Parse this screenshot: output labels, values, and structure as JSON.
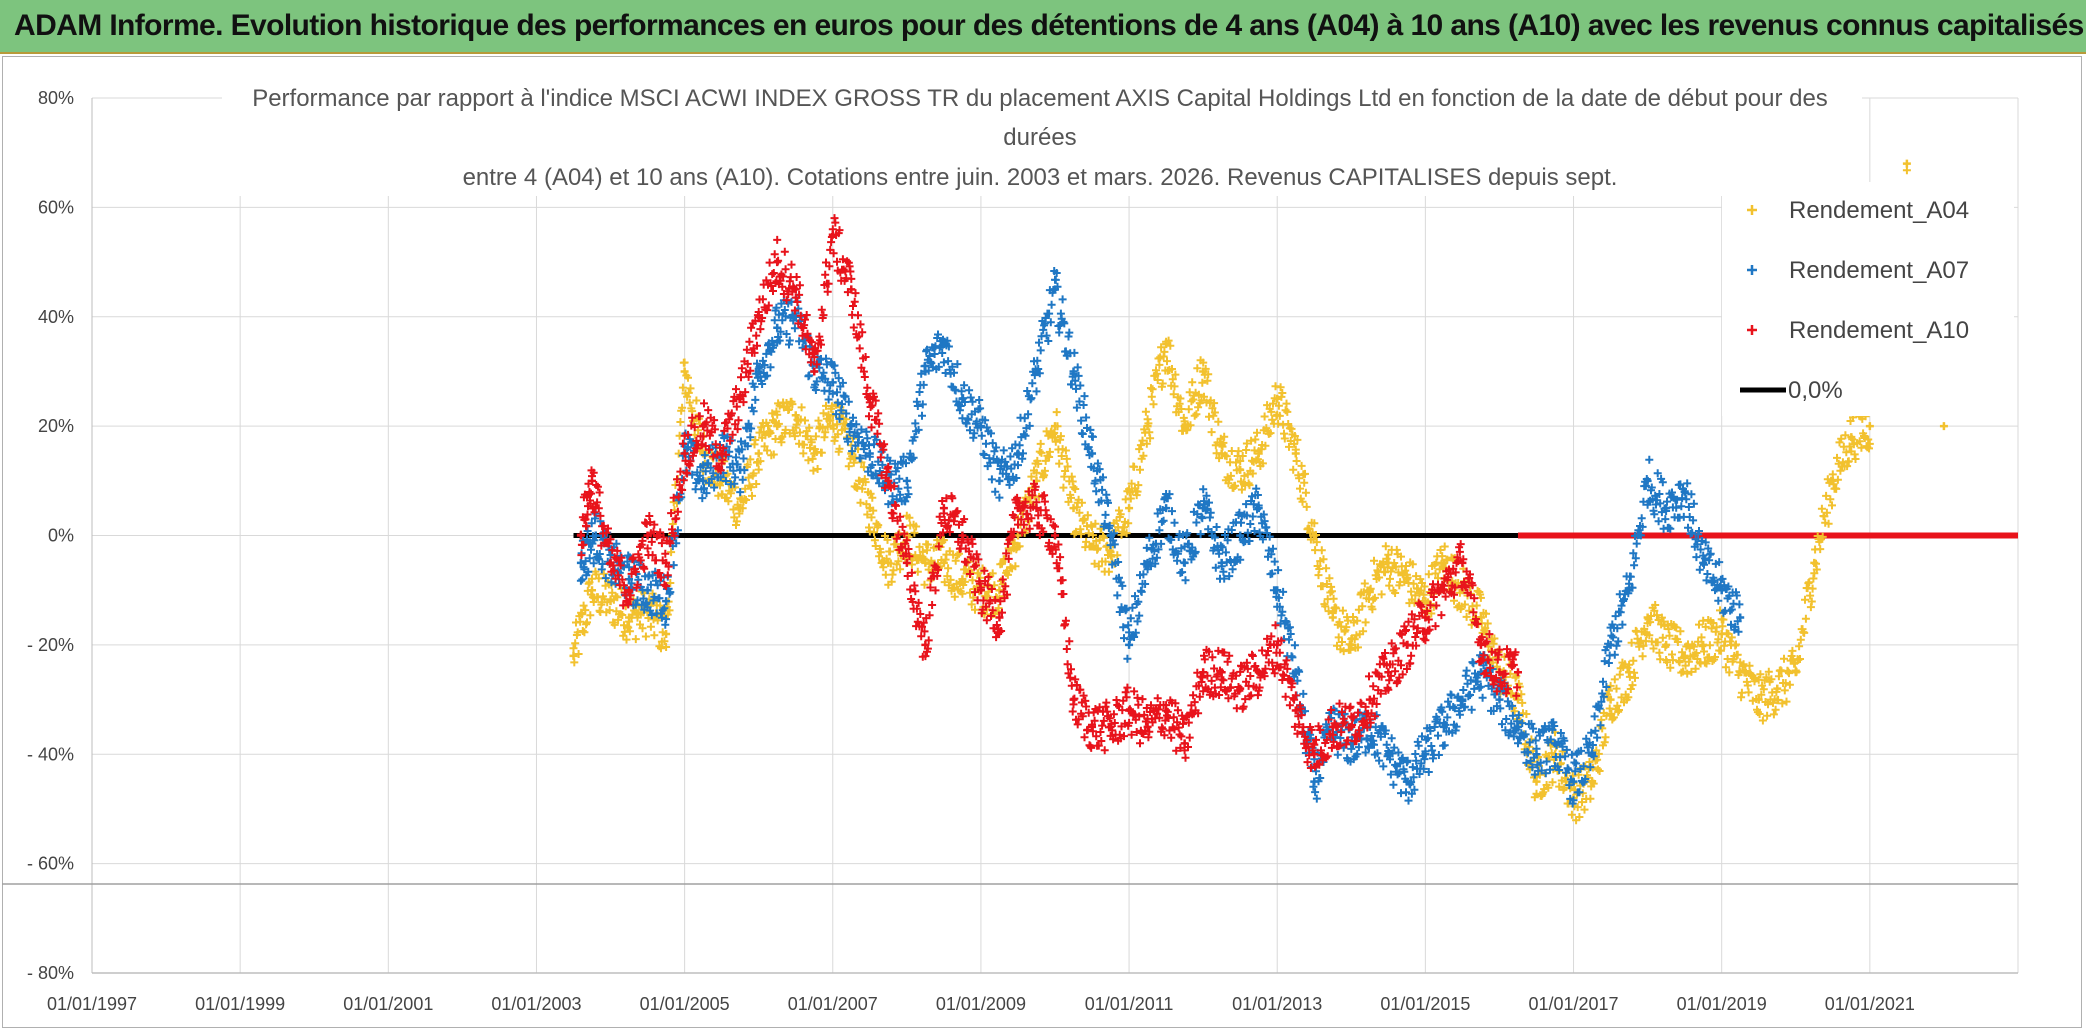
{
  "banner": {
    "title": "ADAM Informe. Evolution historique des performances en euros pour des détentions de 4 ans (A04) à 10 ans (A10) avec les revenus connus capitalisés"
  },
  "chart_data": {
    "type": "scatter",
    "title_lines": [
      "Performance  par rapport à l'indice MSCI ACWI INDEX GROSS TR  du placement AXIS Capital Holdings Ltd en fonction de la date de début pour des",
      "durées",
      "entre 4 (A04) et 10 ans (A10). Cotations entre juin. 2003 et mars. 2026. Revenus CAPITALISES depuis sept."
    ],
    "x_ticks": [
      "01/01/1997",
      "01/01/1999",
      "01/01/2001",
      "01/01/2003",
      "01/01/2005",
      "01/01/2007",
      "01/01/2009",
      "01/01/2011",
      "01/01/2013",
      "01/01/2015",
      "01/01/2017",
      "01/01/2019",
      "01/01/2021"
    ],
    "y_ticks": [
      "80%",
      "60%",
      "40%",
      "20%",
      "0%",
      "- 20%",
      "- 40%",
      "- 60%",
      "- 80%"
    ],
    "xlim": [
      1997.0,
      2023.0
    ],
    "ylim": [
      -80,
      80
    ],
    "legend_position": "top-right",
    "colors": {
      "A04": "#f2c12e",
      "A07": "#1f77c4",
      "A10": "#e8131b",
      "zero": "#000000",
      "grid": "#d9d9d9"
    },
    "series": [
      {
        "name": "Rendement_A04",
        "key": "A04",
        "points": [
          [
            2003.5,
            -22
          ],
          [
            2003.75,
            -10
          ],
          [
            2004.0,
            -12
          ],
          [
            2004.25,
            -15
          ],
          [
            2004.5,
            -14
          ],
          [
            2004.75,
            -18
          ],
          [
            2005.0,
            30
          ],
          [
            2005.25,
            15
          ],
          [
            2005.5,
            10
          ],
          [
            2005.75,
            5
          ],
          [
            2006.0,
            15
          ],
          [
            2006.25,
            20
          ],
          [
            2006.5,
            22
          ],
          [
            2006.75,
            15
          ],
          [
            2007.0,
            22
          ],
          [
            2007.25,
            15
          ],
          [
            2007.5,
            5
          ],
          [
            2007.75,
            -5
          ],
          [
            2008.0,
            0
          ],
          [
            2008.25,
            -5
          ],
          [
            2008.5,
            -5
          ],
          [
            2008.75,
            -8
          ],
          [
            2009.0,
            -10
          ],
          [
            2009.25,
            -10
          ],
          [
            2009.5,
            0
          ],
          [
            2009.75,
            10
          ],
          [
            2010.0,
            20
          ],
          [
            2010.25,
            5
          ],
          [
            2010.5,
            -2
          ],
          [
            2010.75,
            -3
          ],
          [
            2011.0,
            5
          ],
          [
            2011.25,
            20
          ],
          [
            2011.5,
            35
          ],
          [
            2011.75,
            20
          ],
          [
            2012.0,
            30
          ],
          [
            2012.25,
            15
          ],
          [
            2012.5,
            12
          ],
          [
            2012.75,
            15
          ],
          [
            2013.0,
            25
          ],
          [
            2013.25,
            15
          ],
          [
            2013.5,
            0
          ],
          [
            2013.75,
            -15
          ],
          [
            2014.0,
            -20
          ],
          [
            2014.25,
            -10
          ],
          [
            2014.5,
            -5
          ],
          [
            2014.75,
            -8
          ],
          [
            2015.0,
            -12
          ],
          [
            2015.25,
            -5
          ],
          [
            2015.5,
            -10
          ],
          [
            2015.75,
            -15
          ],
          [
            2016.0,
            -25
          ],
          [
            2016.25,
            -30
          ],
          [
            2016.5,
            -45
          ],
          [
            2016.75,
            -40
          ],
          [
            2017.0,
            -48
          ],
          [
            2017.25,
            -45
          ],
          [
            2017.5,
            -30
          ],
          [
            2017.75,
            -25
          ],
          [
            2018.0,
            -15
          ],
          [
            2018.25,
            -20
          ],
          [
            2018.5,
            -22
          ],
          [
            2018.75,
            -20
          ],
          [
            2019.0,
            -18
          ],
          [
            2019.25,
            -25
          ],
          [
            2019.5,
            -30
          ],
          [
            2019.75,
            -28
          ],
          [
            2020.0,
            -25
          ],
          [
            2020.25,
            -5
          ],
          [
            2020.5,
            10
          ],
          [
            2020.75,
            18
          ],
          [
            2021.0,
            20
          ],
          [
            2021.5,
            68
          ],
          [
            2022.0,
            20
          ]
        ]
      },
      {
        "name": "Rendement_A07",
        "key": "A07",
        "points": [
          [
            2003.6,
            -5
          ],
          [
            2003.8,
            0
          ],
          [
            2004.0,
            -5
          ],
          [
            2004.25,
            -8
          ],
          [
            2004.5,
            -10
          ],
          [
            2004.75,
            -12
          ],
          [
            2005.0,
            15
          ],
          [
            2005.25,
            10
          ],
          [
            2005.5,
            15
          ],
          [
            2005.75,
            12
          ],
          [
            2006.0,
            30
          ],
          [
            2006.25,
            38
          ],
          [
            2006.5,
            40
          ],
          [
            2006.75,
            30
          ],
          [
            2007.0,
            28
          ],
          [
            2007.25,
            20
          ],
          [
            2007.5,
            15
          ],
          [
            2007.75,
            10
          ],
          [
            2008.0,
            10
          ],
          [
            2008.25,
            30
          ],
          [
            2008.5,
            35
          ],
          [
            2008.75,
            25
          ],
          [
            2009.0,
            20
          ],
          [
            2009.25,
            10
          ],
          [
            2009.5,
            15
          ],
          [
            2009.75,
            30
          ],
          [
            2010.0,
            45
          ],
          [
            2010.25,
            30
          ],
          [
            2010.5,
            15
          ],
          [
            2010.75,
            0
          ],
          [
            2011.0,
            -20
          ],
          [
            2011.25,
            -5
          ],
          [
            2011.5,
            5
          ],
          [
            2011.75,
            -5
          ],
          [
            2012.0,
            5
          ],
          [
            2012.25,
            -5
          ],
          [
            2012.5,
            0
          ],
          [
            2012.75,
            5
          ],
          [
            2013.0,
            -10
          ],
          [
            2013.25,
            -25
          ],
          [
            2013.5,
            -45
          ],
          [
            2013.75,
            -35
          ],
          [
            2014.0,
            -38
          ],
          [
            2014.25,
            -35
          ],
          [
            2014.5,
            -40
          ],
          [
            2014.75,
            -45
          ],
          [
            2015.0,
            -40
          ],
          [
            2015.25,
            -35
          ],
          [
            2015.5,
            -30
          ],
          [
            2015.75,
            -25
          ],
          [
            2016.0,
            -30
          ],
          [
            2016.25,
            -35
          ],
          [
            2016.5,
            -40
          ],
          [
            2016.75,
            -38
          ],
          [
            2017.0,
            -45
          ],
          [
            2017.25,
            -40
          ],
          [
            2017.5,
            -20
          ],
          [
            2017.75,
            -10
          ],
          [
            2018.0,
            10
          ],
          [
            2018.25,
            5
          ],
          [
            2018.5,
            8
          ],
          [
            2018.75,
            -5
          ],
          [
            2019.0,
            -10
          ],
          [
            2019.25,
            -15
          ]
        ]
      },
      {
        "name": "Rendement_A10",
        "key": "A10",
        "points": [
          [
            2003.6,
            0
          ],
          [
            2003.75,
            10
          ],
          [
            2004.0,
            -5
          ],
          [
            2004.25,
            -10
          ],
          [
            2004.5,
            0
          ],
          [
            2004.75,
            -5
          ],
          [
            2005.0,
            15
          ],
          [
            2005.25,
            20
          ],
          [
            2005.5,
            15
          ],
          [
            2005.75,
            25
          ],
          [
            2006.0,
            40
          ],
          [
            2006.25,
            50
          ],
          [
            2006.5,
            45
          ],
          [
            2006.75,
            30
          ],
          [
            2007.0,
            55
          ],
          [
            2007.25,
            45
          ],
          [
            2007.5,
            25
          ],
          [
            2007.75,
            10
          ],
          [
            2008.0,
            -5
          ],
          [
            2008.25,
            -20
          ],
          [
            2008.5,
            5
          ],
          [
            2008.75,
            0
          ],
          [
            2009.0,
            -10
          ],
          [
            2009.25,
            -15
          ],
          [
            2009.5,
            5
          ],
          [
            2009.75,
            5
          ],
          [
            2010.0,
            0
          ],
          [
            2010.25,
            -30
          ],
          [
            2010.5,
            -35
          ],
          [
            2010.75,
            -35
          ],
          [
            2011.0,
            -32
          ],
          [
            2011.25,
            -35
          ],
          [
            2011.5,
            -32
          ],
          [
            2011.75,
            -38
          ],
          [
            2012.0,
            -25
          ],
          [
            2012.25,
            -25
          ],
          [
            2012.5,
            -28
          ],
          [
            2012.75,
            -25
          ],
          [
            2013.0,
            -20
          ],
          [
            2013.25,
            -32
          ],
          [
            2013.5,
            -40
          ],
          [
            2013.75,
            -35
          ],
          [
            2014.0,
            -35
          ],
          [
            2014.25,
            -30
          ],
          [
            2014.5,
            -25
          ],
          [
            2014.75,
            -20
          ],
          [
            2015.0,
            -15
          ],
          [
            2015.25,
            -10
          ],
          [
            2015.5,
            -5
          ],
          [
            2015.75,
            -20
          ],
          [
            2016.0,
            -25
          ],
          [
            2016.25,
            -25
          ]
        ]
      }
    ],
    "zero_line": {
      "label": "0,0%",
      "black_range": [
        2003.5,
        2016.25
      ],
      "red_range": [
        2016.25,
        2023.0
      ]
    }
  }
}
